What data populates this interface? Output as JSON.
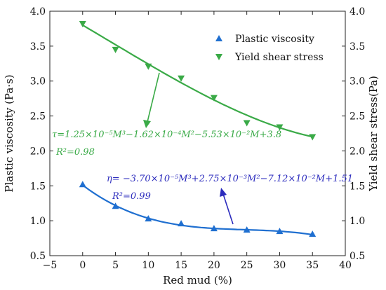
{
  "chart_data": {
    "type": "scatter",
    "xlabel": "Red mud (%)",
    "ylabel_left": "Plastic viscosity (Pa·s)",
    "ylabel_right": "Yield shear stress(Pa)",
    "xlim": [
      -5,
      40
    ],
    "ylim": [
      0.5,
      4.0
    ],
    "xticks": [
      "−5",
      "0",
      "5",
      "10",
      "15",
      "20",
      "25",
      "30",
      "35",
      "40"
    ],
    "yticks": [
      "0.5",
      "1.0",
      "1.5",
      "2.0",
      "2.5",
      "3.0",
      "3.5",
      "4.0"
    ],
    "series": [
      {
        "name": "Plastic viscosity",
        "color": "#1f6fd0",
        "marker": "triangle-up",
        "x": [
          0,
          5,
          10,
          15,
          20,
          25,
          30,
          35
        ],
        "y": [
          1.52,
          1.21,
          1.03,
          0.96,
          0.89,
          0.87,
          0.85,
          0.81
        ],
        "fit": [
          1.51,
          -0.0712,
          0.00275,
          -3.7e-05
        ]
      },
      {
        "name": "Yield shear stress",
        "color": "#3aaa47",
        "marker": "triangle-down",
        "x": [
          0,
          5,
          10,
          15,
          20,
          25,
          30,
          35
        ],
        "y": [
          3.82,
          3.45,
          3.21,
          3.04,
          2.76,
          2.4,
          2.34,
          2.2
        ],
        "fit": [
          3.8,
          -0.0553,
          -0.000162,
          1.25e-05
        ]
      }
    ],
    "legend_position": "top-right",
    "annotations": [
      {
        "color": "#3aaa47",
        "equation": "τ=1.25×10⁻⁵M³−1.62×10⁻⁴M²−5.53×10⁻²M+3.8",
        "r2": "R²=0.98"
      },
      {
        "color": "#2b2bbd",
        "equation": "η= −3.70×10⁻⁵M³+2.75×10⁻³M²−7.12×10⁻²M+1.51",
        "r2": "R²=0.99"
      }
    ]
  }
}
